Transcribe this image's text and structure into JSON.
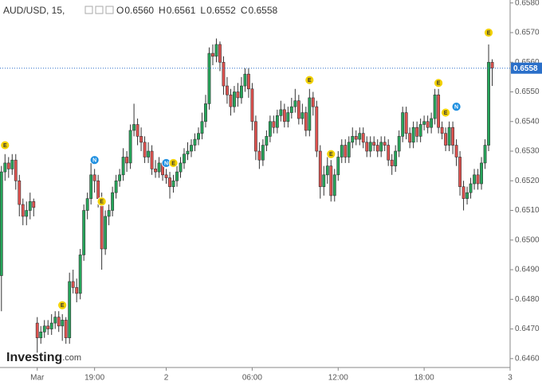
{
  "chart_data": {
    "type": "candlestick",
    "header": {
      "symbol": "AUD/USD, 15,",
      "quote": [
        {
          "key": "O",
          "label": "0.6560"
        },
        {
          "key": "H",
          "label": "0.6561"
        },
        {
          "key": "L",
          "label": "0.6552"
        },
        {
          "key": "C",
          "label": "0.6558"
        }
      ]
    },
    "logo": {
      "name": "Investing",
      "suffix": ".com"
    },
    "up_color": "#26a65b",
    "down_color": "#e0524f",
    "open": [
      0.6488,
      0.6523,
      0.6526,
      0.6524,
      0.6527,
      0.652,
      0.6512,
      0.6508,
      0.651,
      0.6513,
      0.6472,
      0.6467,
      0.6469,
      0.6471,
      0.647,
      0.6472,
      0.6474,
      0.6471,
      0.6473,
      0.6467,
      0.6486,
      0.6484,
      0.6482,
      0.6495,
      0.651,
      0.6514,
      0.6522,
      0.652,
      0.6514,
      0.6497,
      0.6508,
      0.651,
      0.6516,
      0.652,
      0.6522,
      0.6528,
      0.6526,
      0.6537,
      0.6539,
      0.6535,
      0.6533,
      0.6528,
      0.653,
      0.6524,
      0.6523,
      0.6526,
      0.6522,
      0.6521,
      0.6518,
      0.652,
      0.6523,
      0.6526,
      0.6529,
      0.653,
      0.6532,
      0.6534,
      0.6536,
      0.654,
      0.6546,
      0.6563,
      0.6562,
      0.6566,
      0.656,
      0.6552,
      0.6549,
      0.6545,
      0.655,
      0.6548,
      0.6552,
      0.6556,
      0.6551,
      0.654,
      0.653,
      0.6527,
      0.6532,
      0.6535,
      0.654,
      0.6538,
      0.6542,
      0.6544,
      0.654,
      0.6543,
      0.6545,
      0.6547,
      0.6541,
      0.6543,
      0.6537,
      0.6548,
      0.6545,
      0.653,
      0.6518,
      0.6522,
      0.6525,
      0.6515,
      0.6522,
      0.6528,
      0.6532,
      0.6528,
      0.6533,
      0.6535,
      0.6534,
      0.6536,
      0.6533,
      0.653,
      0.6533,
      0.6532,
      0.653,
      0.6533,
      0.6532,
      0.6527,
      0.6525,
      0.653,
      0.6535,
      0.6543,
      0.6536,
      0.6533,
      0.6538,
      0.6535,
      0.6539,
      0.654,
      0.6538,
      0.6541,
      0.6549,
      0.6538,
      0.6536,
      0.6532,
      0.6538,
      0.6532,
      0.6528,
      0.6518,
      0.6514,
      0.6516,
      0.6519,
      0.6522,
      0.6519,
      0.6526,
      0.6532,
      0.656
    ],
    "high": [
      0.6525,
      0.6529,
      0.6528,
      0.6529,
      0.6529,
      0.6522,
      0.6514,
      0.6513,
      0.6516,
      0.6514,
      0.6474,
      0.6471,
      0.6473,
      0.6473,
      0.6475,
      0.6476,
      0.6476,
      0.6475,
      0.6474,
      0.6489,
      0.649,
      0.6487,
      0.6497,
      0.6512,
      0.6516,
      0.6526,
      0.6524,
      0.6522,
      0.6516,
      0.651,
      0.6512,
      0.6518,
      0.6522,
      0.6524,
      0.6531,
      0.653,
      0.6539,
      0.6546,
      0.6541,
      0.6538,
      0.6535,
      0.6533,
      0.6532,
      0.6527,
      0.6528,
      0.6527,
      0.6524,
      0.6523,
      0.6522,
      0.6525,
      0.6528,
      0.6531,
      0.6533,
      0.6534,
      0.6536,
      0.6538,
      0.6543,
      0.6549,
      0.6565,
      0.6566,
      0.6568,
      0.6567,
      0.6562,
      0.6555,
      0.6551,
      0.6552,
      0.6553,
      0.6555,
      0.6558,
      0.6558,
      0.6553,
      0.6542,
      0.6533,
      0.6534,
      0.6537,
      0.6542,
      0.6542,
      0.6544,
      0.6547,
      0.6546,
      0.6545,
      0.6548,
      0.6551,
      0.6549,
      0.6546,
      0.6545,
      0.6551,
      0.655,
      0.6547,
      0.6532,
      0.6525,
      0.6528,
      0.6527,
      0.6524,
      0.653,
      0.6534,
      0.6534,
      0.6535,
      0.6538,
      0.6537,
      0.6538,
      0.6538,
      0.6535,
      0.6535,
      0.6535,
      0.6534,
      0.6535,
      0.6535,
      0.6534,
      0.6529,
      0.6532,
      0.6537,
      0.6545,
      0.6545,
      0.6538,
      0.654,
      0.654,
      0.6541,
      0.6542,
      0.6542,
      0.6543,
      0.6551,
      0.6551,
      0.654,
      0.6538,
      0.654,
      0.654,
      0.6534,
      0.653,
      0.652,
      0.6518,
      0.6521,
      0.6524,
      0.6524,
      0.6528,
      0.6534,
      0.6566,
      0.6561
    ],
    "low": [
      0.6476,
      0.652,
      0.6521,
      0.6522,
      0.6517,
      0.6508,
      0.6505,
      0.6505,
      0.6507,
      0.6508,
      0.6462,
      0.6465,
      0.6467,
      0.6468,
      0.6468,
      0.647,
      0.6469,
      0.6466,
      0.6465,
      0.6465,
      0.6482,
      0.6479,
      0.648,
      0.6493,
      0.6507,
      0.6512,
      0.6516,
      0.6511,
      0.649,
      0.6495,
      0.6505,
      0.6508,
      0.6514,
      0.6518,
      0.652,
      0.6523,
      0.6524,
      0.6535,
      0.6532,
      0.653,
      0.6526,
      0.6526,
      0.6522,
      0.6521,
      0.6521,
      0.652,
      0.6519,
      0.6514,
      0.6516,
      0.6518,
      0.6521,
      0.6524,
      0.6527,
      0.6528,
      0.653,
      0.6532,
      0.6534,
      0.6538,
      0.6544,
      0.6559,
      0.656,
      0.6557,
      0.6549,
      0.6546,
      0.6542,
      0.6543,
      0.6545,
      0.6546,
      0.655,
      0.6548,
      0.6537,
      0.6527,
      0.6524,
      0.6525,
      0.653,
      0.6533,
      0.6536,
      0.6536,
      0.654,
      0.6538,
      0.6538,
      0.6541,
      0.6543,
      0.6539,
      0.6539,
      0.6535,
      0.6535,
      0.6542,
      0.6528,
      0.6514,
      0.6515,
      0.6519,
      0.6513,
      0.6513,
      0.652,
      0.6526,
      0.6526,
      0.6526,
      0.6531,
      0.6532,
      0.6532,
      0.6531,
      0.6528,
      0.6528,
      0.653,
      0.6528,
      0.6528,
      0.653,
      0.6525,
      0.6522,
      0.6523,
      0.6528,
      0.6533,
      0.6534,
      0.6531,
      0.6531,
      0.6533,
      0.6533,
      0.6537,
      0.6536,
      0.6536,
      0.6539,
      0.6536,
      0.6534,
      0.653,
      0.653,
      0.6529,
      0.6525,
      0.6515,
      0.651,
      0.6512,
      0.6514,
      0.6517,
      0.6517,
      0.6517,
      0.6524,
      0.653,
      0.6552
    ],
    "close": [
      0.6523,
      0.6526,
      0.6524,
      0.6527,
      0.652,
      0.6512,
      0.6508,
      0.651,
      0.6513,
      0.6511,
      0.6467,
      0.6469,
      0.6471,
      0.647,
      0.6472,
      0.6474,
      0.6471,
      0.6473,
      0.6467,
      0.6486,
      0.6484,
      0.6482,
      0.6495,
      0.651,
      0.6514,
      0.6522,
      0.652,
      0.6514,
      0.6497,
      0.6508,
      0.651,
      0.6516,
      0.652,
      0.6522,
      0.6528,
      0.6526,
      0.6537,
      0.6539,
      0.6535,
      0.6533,
      0.6528,
      0.653,
      0.6524,
      0.6523,
      0.6526,
      0.6522,
      0.6521,
      0.6518,
      0.652,
      0.6523,
      0.6526,
      0.6529,
      0.653,
      0.6532,
      0.6534,
      0.6536,
      0.654,
      0.6546,
      0.6563,
      0.6562,
      0.6566,
      0.656,
      0.6552,
      0.6549,
      0.6545,
      0.655,
      0.6548,
      0.6552,
      0.6556,
      0.6551,
      0.654,
      0.653,
      0.6527,
      0.6532,
      0.6535,
      0.654,
      0.6538,
      0.6542,
      0.6544,
      0.654,
      0.6543,
      0.6545,
      0.6547,
      0.6541,
      0.6543,
      0.6537,
      0.6548,
      0.6545,
      0.653,
      0.6518,
      0.6522,
      0.6525,
      0.6515,
      0.6522,
      0.6528,
      0.6532,
      0.6528,
      0.6533,
      0.6535,
      0.6534,
      0.6536,
      0.6533,
      0.653,
      0.6533,
      0.6532,
      0.653,
      0.6533,
      0.6532,
      0.6527,
      0.6525,
      0.653,
      0.6535,
      0.6543,
      0.6536,
      0.6533,
      0.6538,
      0.6535,
      0.6539,
      0.654,
      0.6538,
      0.6541,
      0.6549,
      0.6538,
      0.6536,
      0.6532,
      0.6538,
      0.6532,
      0.6528,
      0.6518,
      0.6514,
      0.6516,
      0.6519,
      0.6522,
      0.6519,
      0.6526,
      0.6532,
      0.656,
      0.6558
    ],
    "events": [
      {
        "label": "E",
        "x": 1,
        "y": 0.6532
      },
      {
        "label": "E",
        "x": 17,
        "y": 0.6478
      },
      {
        "label": "N",
        "x": 26,
        "y": 0.6527
      },
      {
        "label": "E",
        "x": 28,
        "y": 0.6513
      },
      {
        "label": "N",
        "x": 46,
        "y": 0.6526
      },
      {
        "label": "E",
        "x": 48,
        "y": 0.6526
      },
      {
        "label": "E",
        "x": 86,
        "y": 0.6554
      },
      {
        "label": "E",
        "x": 92,
        "y": 0.6529
      },
      {
        "label": "E",
        "x": 122,
        "y": 0.6553
      },
      {
        "label": "E",
        "x": 124,
        "y": 0.6543
      },
      {
        "label": "N",
        "x": 127,
        "y": 0.6545
      },
      {
        "label": "E",
        "x": 136,
        "y": 0.657
      }
    ],
    "last_price": {
      "value": 0.6558,
      "label": "0.6558"
    },
    "xlim": [
      -0.4,
      142
    ],
    "xticks": [
      {
        "value": 10,
        "label": "Mar"
      },
      {
        "value": 26,
        "label": "19:00"
      },
      {
        "value": 46,
        "label": "2"
      },
      {
        "value": 70,
        "label": "06:00"
      },
      {
        "value": 94,
        "label": "12:00"
      },
      {
        "value": 118,
        "label": "18:00"
      },
      {
        "value": 142,
        "label": "3"
      }
    ],
    "ylim": [
      0.6457,
      0.6581
    ],
    "yticks": [
      {
        "value": 0.646,
        "label": "0.6460"
      },
      {
        "value": 0.647,
        "label": "0.6470"
      },
      {
        "value": 0.648,
        "label": "0.6480"
      },
      {
        "value": 0.649,
        "label": "0.6490"
      },
      {
        "value": 0.65,
        "label": "0.6500"
      },
      {
        "value": 0.651,
        "label": "0.6510"
      },
      {
        "value": 0.652,
        "label": "0.6520"
      },
      {
        "value": 0.653,
        "label": "0.6530"
      },
      {
        "value": 0.654,
        "label": "0.6540"
      },
      {
        "value": 0.655,
        "label": "0.6550"
      },
      {
        "value": 0.656,
        "label": "0.6560"
      },
      {
        "value": 0.657,
        "label": "0.6570"
      },
      {
        "value": 0.658,
        "label": "0.6580"
      }
    ],
    "grid": false
  }
}
